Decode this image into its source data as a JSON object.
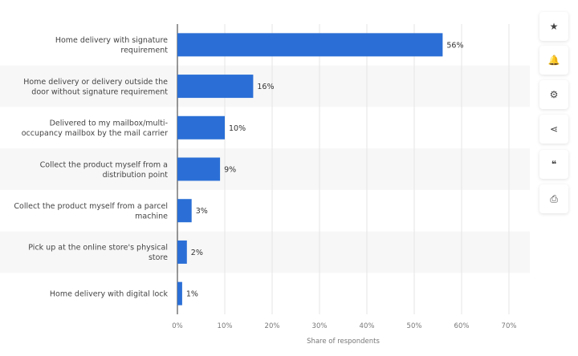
{
  "chart_data": {
    "type": "bar",
    "orientation": "horizontal",
    "categories": [
      [
        "Home delivery with signature",
        "requirement"
      ],
      [
        "Home delivery or delivery outside the",
        "door without signature requirement"
      ],
      [
        "Delivered to my mailbox/multi-",
        "occupancy mailbox by the mail carrier"
      ],
      [
        "Collect the product myself from a",
        "distribution point"
      ],
      [
        "Collect the product myself from a parcel",
        "machine"
      ],
      [
        "Pick up at the online store's physical",
        "store"
      ],
      [
        "Home delivery with digital lock"
      ]
    ],
    "values": [
      56,
      16,
      10,
      9,
      3,
      2,
      1
    ],
    "data_labels": [
      "56%",
      "16%",
      "10%",
      "9%",
      "3%",
      "2%",
      "1%"
    ],
    "xlabel": "Share of respondents",
    "xlim": [
      0,
      70
    ],
    "xticks": [
      "0%",
      "10%",
      "20%",
      "30%",
      "40%",
      "50%",
      "60%",
      "70%"
    ],
    "grid": true,
    "bar_color": "#2b6fd6"
  },
  "sidebar": {
    "icons": [
      "star-icon",
      "bell-icon",
      "gear-icon",
      "share-icon",
      "quote-icon",
      "print-icon"
    ],
    "glyphs": [
      "★",
      "🔔",
      "⚙",
      "⋖",
      "❝",
      "⎙"
    ]
  }
}
